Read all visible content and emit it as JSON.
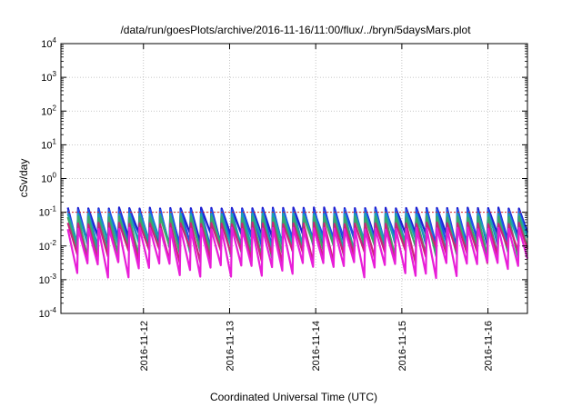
{
  "chart_data": {
    "type": "line",
    "title": "/data/run/goesPlots/archive/2016-11-16/11:00/flux/../bryn/5daysMars.plot",
    "xlabel": "Coordinated Universal Time (UTC)",
    "ylabel": "cSv/day",
    "y_scale": "log",
    "ylim": [
      0.0001,
      10000
    ],
    "y_ticks": [
      {
        "value": 0.0001,
        "base": "10",
        "exp": "-4"
      },
      {
        "value": 0.001,
        "base": "10",
        "exp": "-3"
      },
      {
        "value": 0.01,
        "base": "10",
        "exp": "-2"
      },
      {
        "value": 0.1,
        "base": "10",
        "exp": "-1"
      },
      {
        "value": 1,
        "base": "10",
        "exp": "0"
      },
      {
        "value": 10,
        "base": "10",
        "exp": "1"
      },
      {
        "value": 100,
        "base": "10",
        "exp": "2"
      },
      {
        "value": 1000,
        "base": "10",
        "exp": "3"
      },
      {
        "value": 10000,
        "base": "10",
        "exp": "4"
      }
    ],
    "xlim": [
      "2016-11-11T01:00",
      "2016-11-16T11:00"
    ],
    "x_ticks": [
      "2016-11-12",
      "2016-11-13",
      "2016-11-14",
      "2016-11-15",
      "2016-11-16"
    ],
    "grid": true,
    "reference_line": {
      "value": 0.1,
      "color": "#d62728"
    },
    "periodic_pattern": {
      "cycles_per_day": 8.4,
      "peak_start_day": 0.08
    },
    "series": [
      {
        "color": "#1f1fd0",
        "peak": 0.14,
        "trough": 0.012,
        "peak_variation": 0.08,
        "trough_variation": 0.45
      },
      {
        "color": "#2050e8",
        "peak": 0.12,
        "trough": 0.01,
        "peak_variation": 0.08,
        "trough_variation": 0.45
      },
      {
        "color": "#1a9fb5",
        "peak": 0.095,
        "trough": 0.008,
        "peak_variation": 0.1,
        "trough_variation": 0.45
      },
      {
        "color": "#3aa86a",
        "peak": 0.075,
        "trough": 0.006,
        "peak_variation": 0.1,
        "trough_variation": 0.45
      },
      {
        "color": "#c9257a",
        "peak": 0.05,
        "trough": 0.004,
        "peak_variation": 0.12,
        "trough_variation": 0.5
      },
      {
        "color": "#e81ed8",
        "peak": 0.035,
        "trough": 0.0015,
        "peak_variation": 0.12,
        "trough_variation": 0.5
      }
    ]
  }
}
